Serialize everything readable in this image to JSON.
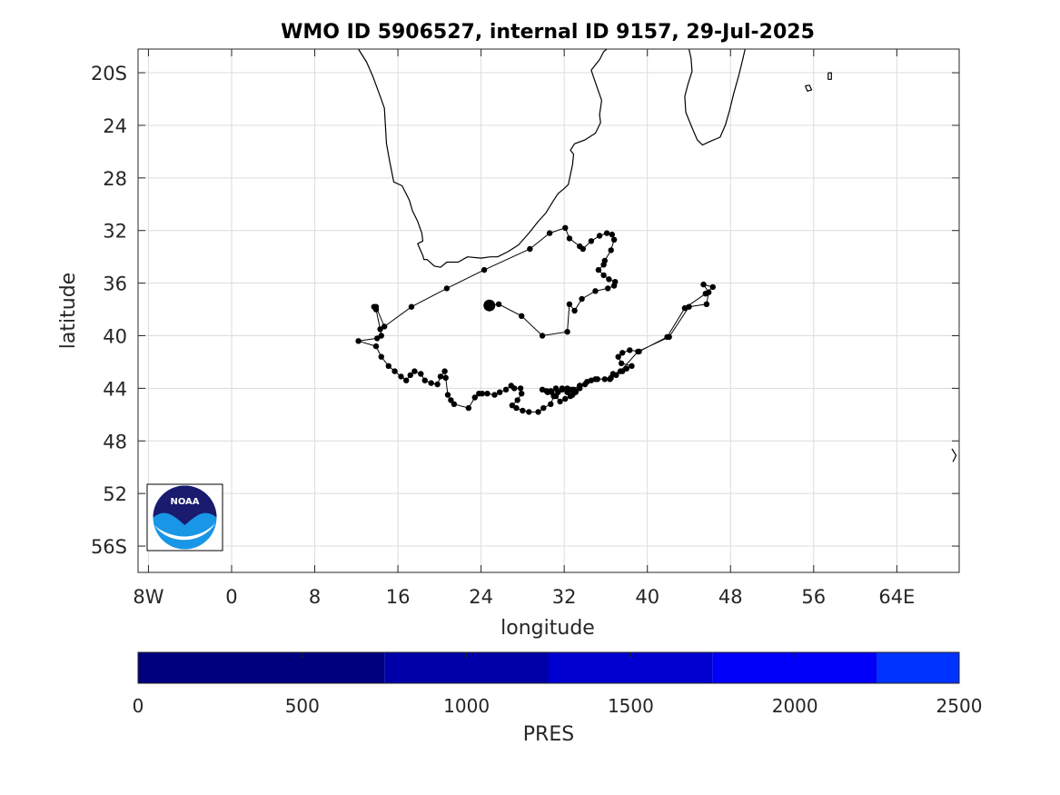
{
  "title": "WMO ID 5906527, internal ID 9157, 29-Jul-2025",
  "map": {
    "xlabel": "longitude",
    "ylabel": "latitude",
    "xlim": [
      -9,
      70
    ],
    "ylim": [
      -58,
      -18.2
    ],
    "grid": true,
    "x_ticks": [
      {
        "value": -8,
        "label": "8W"
      },
      {
        "value": 0,
        "label": "0"
      },
      {
        "value": 8,
        "label": "8"
      },
      {
        "value": 16,
        "label": "16"
      },
      {
        "value": 24,
        "label": "24"
      },
      {
        "value": 32,
        "label": "32"
      },
      {
        "value": 40,
        "label": "40"
      },
      {
        "value": 48,
        "label": "48"
      },
      {
        "value": 56,
        "label": "56"
      },
      {
        "value": 64,
        "label": "64E"
      }
    ],
    "y_ticks": [
      {
        "value": -20,
        "label": "20S"
      },
      {
        "value": -24,
        "label": "24"
      },
      {
        "value": -28,
        "label": "28"
      },
      {
        "value": -32,
        "label": "32"
      },
      {
        "value": -36,
        "label": "36"
      },
      {
        "value": -40,
        "label": "40"
      },
      {
        "value": -44,
        "label": "44"
      },
      {
        "value": -48,
        "label": "48"
      },
      {
        "value": -52,
        "label": "52"
      },
      {
        "value": -56,
        "label": "56S"
      }
    ],
    "coastlines": [
      {
        "name": "africa-west-coast",
        "points": [
          [
            12.2,
            -18.2
          ],
          [
            13.0,
            -19.2
          ],
          [
            13.6,
            -20.3
          ],
          [
            14.3,
            -21.8
          ],
          [
            14.7,
            -22.7
          ],
          [
            14.8,
            -24.0
          ],
          [
            14.9,
            -25.4
          ],
          [
            15.2,
            -26.7
          ],
          [
            15.6,
            -28.3
          ],
          [
            16.4,
            -28.6
          ],
          [
            17.1,
            -29.7
          ],
          [
            17.4,
            -30.5
          ],
          [
            17.9,
            -31.3
          ],
          [
            18.3,
            -32.2
          ],
          [
            18.4,
            -32.8
          ],
          [
            17.9,
            -33.0
          ],
          [
            18.4,
            -33.9
          ],
          [
            18.5,
            -34.2
          ],
          [
            18.8,
            -34.2
          ],
          [
            19.5,
            -34.7
          ],
          [
            20.1,
            -34.8
          ],
          [
            20.7,
            -34.4
          ],
          [
            21.8,
            -34.4
          ],
          [
            22.7,
            -34.0
          ],
          [
            24.0,
            -34.1
          ],
          [
            24.9,
            -34.0
          ],
          [
            25.6,
            -34.0
          ],
          [
            26.6,
            -33.6
          ],
          [
            27.6,
            -33.1
          ],
          [
            28.6,
            -32.2
          ],
          [
            29.5,
            -31.3
          ],
          [
            30.2,
            -30.7
          ],
          [
            30.9,
            -29.8
          ],
          [
            31.4,
            -29.2
          ],
          [
            32.0,
            -28.8
          ],
          [
            32.4,
            -28.5
          ],
          [
            32.8,
            -27.0
          ],
          [
            32.9,
            -26.2
          ],
          [
            32.6,
            -25.9
          ],
          [
            33.0,
            -25.4
          ],
          [
            34.0,
            -25.1
          ],
          [
            35.0,
            -24.6
          ],
          [
            35.5,
            -23.8
          ],
          [
            35.4,
            -23.2
          ],
          [
            35.6,
            -22.1
          ],
          [
            35.2,
            -21.2
          ],
          [
            34.9,
            -20.5
          ],
          [
            34.6,
            -19.8
          ],
          [
            35.4,
            -19.0
          ],
          [
            35.8,
            -18.4
          ],
          [
            36.1,
            -18.2
          ]
        ]
      },
      {
        "name": "madagascar",
        "points": [
          [
            44.0,
            -18.2
          ],
          [
            44.2,
            -18.9
          ],
          [
            44.3,
            -19.9
          ],
          [
            43.9,
            -20.9
          ],
          [
            43.6,
            -21.8
          ],
          [
            43.7,
            -23.0
          ],
          [
            44.2,
            -24.0
          ],
          [
            44.8,
            -25.1
          ],
          [
            45.3,
            -25.5
          ],
          [
            46.1,
            -25.2
          ],
          [
            47.0,
            -24.9
          ],
          [
            47.5,
            -24.0
          ],
          [
            47.9,
            -22.9
          ],
          [
            48.3,
            -21.6
          ],
          [
            48.8,
            -20.2
          ],
          [
            49.2,
            -18.9
          ],
          [
            49.4,
            -18.2
          ]
        ]
      },
      {
        "name": "reunion-island",
        "points": [
          [
            55.2,
            -21.0
          ],
          [
            55.6,
            -20.95
          ],
          [
            55.8,
            -21.3
          ],
          [
            55.4,
            -21.4
          ],
          [
            55.2,
            -21.0
          ]
        ]
      },
      {
        "name": "mauritius-island",
        "points": [
          [
            57.4,
            -20.0
          ],
          [
            57.7,
            -20.0
          ],
          [
            57.7,
            -20.5
          ],
          [
            57.4,
            -20.5
          ],
          [
            57.4,
            -20.0
          ]
        ]
      },
      {
        "name": "kerguelen-edge",
        "points": [
          [
            69.3,
            -48.6
          ],
          [
            69.7,
            -49.1
          ],
          [
            69.4,
            -49.6
          ]
        ]
      }
    ],
    "trajectory": [
      [
        13.7,
        -37.8
      ],
      [
        13.9,
        -38.0
      ],
      [
        14.3,
        -39.5
      ],
      [
        14.4,
        -40.0
      ],
      [
        14.0,
        -40.2
      ],
      [
        12.2,
        -40.4
      ],
      [
        13.9,
        -40.8
      ],
      [
        14.4,
        -41.6
      ],
      [
        15.1,
        -42.3
      ],
      [
        15.7,
        -42.7
      ],
      [
        16.3,
        -43.1
      ],
      [
        16.8,
        -43.4
      ],
      [
        17.2,
        -43.0
      ],
      [
        17.6,
        -42.7
      ],
      [
        18.2,
        -42.9
      ],
      [
        18.6,
        -43.4
      ],
      [
        19.2,
        -43.6
      ],
      [
        19.8,
        -43.7
      ],
      [
        20.1,
        -43.1
      ],
      [
        20.5,
        -42.7
      ],
      [
        20.6,
        -43.2
      ],
      [
        20.8,
        -44.5
      ],
      [
        21.1,
        -44.9
      ],
      [
        21.4,
        -45.2
      ],
      [
        22.8,
        -45.5
      ],
      [
        23.4,
        -44.7
      ],
      [
        23.8,
        -44.4
      ],
      [
        24.1,
        -44.4
      ],
      [
        24.6,
        -44.4
      ],
      [
        25.3,
        -44.5
      ],
      [
        25.8,
        -44.3
      ],
      [
        26.4,
        -44.1
      ],
      [
        26.9,
        -43.8
      ],
      [
        27.2,
        -44.0
      ],
      [
        27.8,
        -44.0
      ],
      [
        27.9,
        -44.4
      ],
      [
        27.5,
        -44.9
      ],
      [
        27.0,
        -45.3
      ],
      [
        27.4,
        -45.5
      ],
      [
        28.0,
        -45.7
      ],
      [
        28.6,
        -45.8
      ],
      [
        29.5,
        -45.8
      ],
      [
        30.0,
        -45.5
      ],
      [
        30.7,
        -45.2
      ],
      [
        31.0,
        -44.6
      ],
      [
        31.4,
        -44.3
      ],
      [
        31.8,
        -44.0
      ],
      [
        32.3,
        -44.0
      ],
      [
        32.9,
        -44.1
      ],
      [
        33.5,
        -44.0
      ],
      [
        34.0,
        -43.7
      ],
      [
        34.6,
        -43.4
      ],
      [
        35.2,
        -43.3
      ],
      [
        35.9,
        -43.3
      ],
      [
        36.5,
        -43.2
      ],
      [
        37.0,
        -43.0
      ],
      [
        37.6,
        -42.7
      ],
      [
        38.0,
        -42.5
      ],
      [
        38.5,
        -42.3
      ],
      [
        37.5,
        -42.1
      ],
      [
        37.2,
        -41.6
      ],
      [
        37.6,
        -41.3
      ],
      [
        38.3,
        -41.1
      ],
      [
        39.2,
        -41.2
      ],
      [
        41.9,
        -40.1
      ],
      [
        43.6,
        -37.9
      ],
      [
        45.6,
        -36.8
      ],
      [
        46.3,
        -36.3
      ],
      [
        45.4,
        -36.1
      ],
      [
        45.9,
        -36.7
      ],
      [
        45.7,
        -37.6
      ],
      [
        44.0,
        -37.8
      ],
      [
        42.1,
        -40.1
      ],
      [
        39.1,
        -41.2
      ],
      [
        37.4,
        -42.7
      ],
      [
        36.7,
        -42.9
      ],
      [
        36.4,
        -43.3
      ],
      [
        35.0,
        -43.3
      ],
      [
        34.2,
        -43.5
      ],
      [
        33.5,
        -43.8
      ],
      [
        33.1,
        -44.2
      ],
      [
        32.6,
        -44.6
      ],
      [
        32.1,
        -44.8
      ],
      [
        31.6,
        -45.0
      ],
      [
        31.2,
        -44.6
      ],
      [
        30.8,
        -44.3
      ],
      [
        30.3,
        -44.2
      ],
      [
        29.9,
        -44.1
      ],
      [
        30.4,
        -44.3
      ],
      [
        30.7,
        -44.2
      ],
      [
        31.2,
        -44.0
      ],
      [
        31.8,
        -44.1
      ],
      [
        32.3,
        -44.3
      ],
      [
        32.8,
        -44.5
      ],
      [
        33.1,
        -44.3
      ],
      [
        32.7,
        -44.1
      ],
      [
        33.5,
        -43.8
      ]
    ],
    "trajectory_detail": [
      [
        24.9,
        -37.7
      ],
      [
        25.7,
        -37.6
      ],
      [
        27.9,
        -38.5
      ],
      [
        29.9,
        -40.0
      ],
      [
        32.3,
        -39.7
      ],
      [
        32.5,
        -37.6
      ],
      [
        33.0,
        -38.1
      ],
      [
        33.7,
        -37.2
      ],
      [
        35.0,
        -36.6
      ],
      [
        36.2,
        -36.4
      ],
      [
        36.8,
        -36.2
      ],
      [
        36.9,
        -35.9
      ],
      [
        36.3,
        -35.7
      ],
      [
        35.8,
        -35.4
      ],
      [
        35.3,
        -35.0
      ],
      [
        35.8,
        -34.6
      ],
      [
        35.9,
        -34.3
      ],
      [
        36.5,
        -33.5
      ],
      [
        36.8,
        -32.7
      ],
      [
        36.6,
        -32.3
      ],
      [
        36.1,
        -32.2
      ],
      [
        35.4,
        -32.4
      ],
      [
        34.6,
        -32.8
      ],
      [
        33.8,
        -33.4
      ],
      [
        33.5,
        -33.2
      ],
      [
        32.5,
        -32.6
      ],
      [
        32.1,
        -31.8
      ],
      [
        30.6,
        -32.2
      ],
      [
        28.7,
        -33.4
      ],
      [
        24.3,
        -35.0
      ],
      [
        20.7,
        -36.4
      ],
      [
        17.3,
        -37.8
      ],
      [
        14.7,
        -39.3
      ],
      [
        13.9,
        -37.8
      ]
    ],
    "latest_position": {
      "lon": 24.8,
      "lat": -37.7
    },
    "logo": {
      "name": "noaa-logo",
      "text": "NOAA",
      "colors": {
        "top": "#1a1a6e",
        "bottom": "#1a96e6",
        "wave": "#ffffff"
      }
    }
  },
  "colorbar": {
    "label": "PRES",
    "range": [
      0,
      2500
    ],
    "ticks": [
      0,
      500,
      1000,
      1500,
      2000,
      2500
    ],
    "segments": [
      {
        "from": 0,
        "to": 750,
        "color": "#00007f"
      },
      {
        "from": 750,
        "to": 1250,
        "color": "#0000a8"
      },
      {
        "from": 1250,
        "to": 1750,
        "color": "#0000d1"
      },
      {
        "from": 1750,
        "to": 2250,
        "color": "#0000fa"
      },
      {
        "from": 2250,
        "to": 2500,
        "color": "#0033ff"
      }
    ]
  }
}
